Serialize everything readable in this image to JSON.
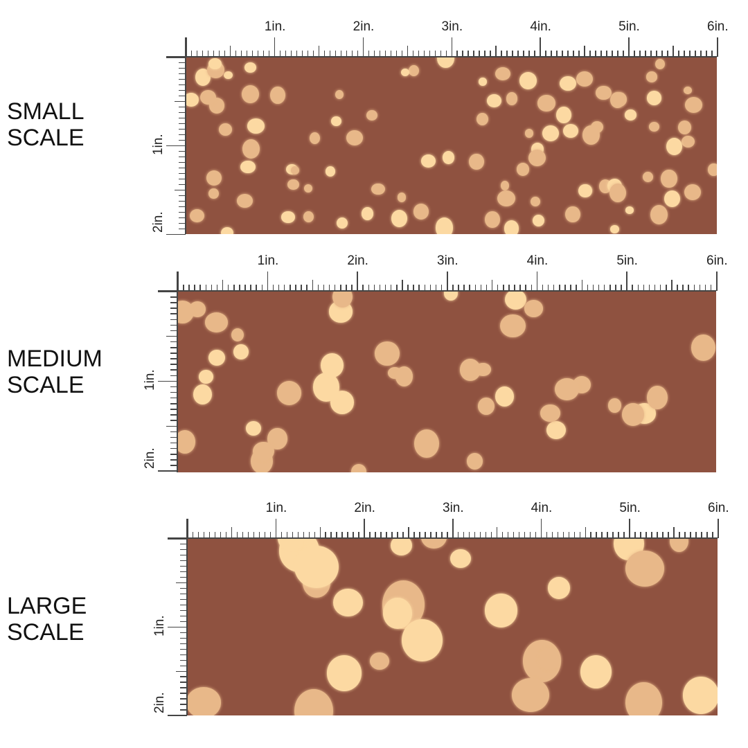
{
  "colors": {
    "background": "#8f5240",
    "dot_light": "#fcd9a2",
    "dot_dim": "#e8b889",
    "ruler": "#444444"
  },
  "ruler": {
    "h_labels": [
      "1in.",
      "2in.",
      "3in.",
      "4in.",
      "5in.",
      "6in."
    ],
    "v_labels": [
      "1in.",
      "2in."
    ]
  },
  "panels": [
    {
      "title_line1": "SMALL",
      "title_line2": "SCALE"
    },
    {
      "title_line1": "MEDIUM",
      "title_line2": "SCALE"
    },
    {
      "title_line1": "LARGE",
      "title_line2": "SCALE"
    }
  ]
}
